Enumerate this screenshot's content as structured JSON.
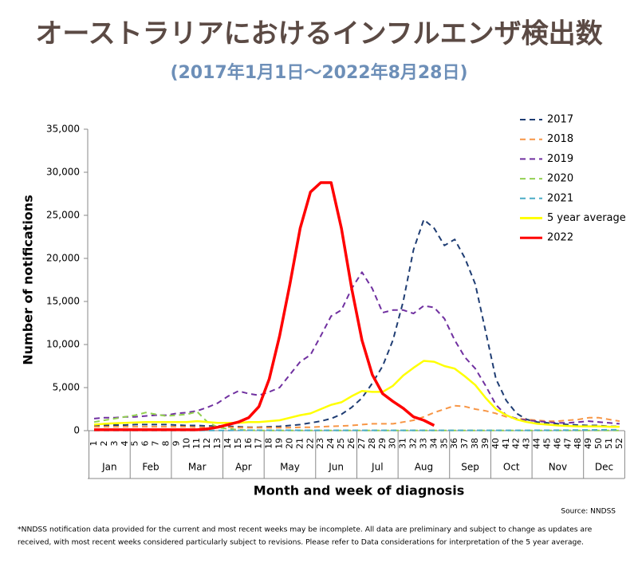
{
  "header": {
    "title": "オーストラリアにおけるインフルエンザ検出数",
    "subtitle": "(2017年1月1日～2022年8月28日)"
  },
  "chart_data": {
    "type": "line",
    "y_label": "Number of notifications",
    "x_label": "Month and week of diagnosis",
    "source": "Source: NNDSS",
    "footnote": [
      "*NNDSS notification data provided for the current and most recent weeks may be incomplete. All data are preliminary and subject to change as updates are",
      "received, with most recent weeks considered particularly subject to revisions. Please refer to Data considerations for interpretation of the 5 year average."
    ],
    "categories": [
      1,
      2,
      3,
      4,
      5,
      6,
      7,
      8,
      9,
      10,
      11,
      12,
      13,
      14,
      15,
      16,
      17,
      18,
      19,
      20,
      21,
      22,
      23,
      24,
      25,
      26,
      27,
      28,
      29,
      30,
      31,
      32,
      33,
      34,
      35,
      36,
      37,
      38,
      39,
      40,
      41,
      42,
      43,
      44,
      45,
      46,
      47,
      48,
      49,
      50,
      51,
      52
    ],
    "month_groups": [
      {
        "label": "Jan",
        "first_week": 1,
        "last_week": 4
      },
      {
        "label": "Feb",
        "first_week": 5,
        "last_week": 8
      },
      {
        "label": "Mar",
        "first_week": 9,
        "last_week": 13
      },
      {
        "label": "Apr",
        "first_week": 14,
        "last_week": 17
      },
      {
        "label": "May",
        "first_week": 18,
        "last_week": 22
      },
      {
        "label": "Jun",
        "first_week": 23,
        "last_week": 26
      },
      {
        "label": "Jul",
        "first_week": 27,
        "last_week": 30
      },
      {
        "label": "Aug",
        "first_week": 31,
        "last_week": 35
      },
      {
        "label": "Sep",
        "first_week": 36,
        "last_week": 39
      },
      {
        "label": "Oct",
        "first_week": 40,
        "last_week": 43
      },
      {
        "label": "Nov",
        "first_week": 44,
        "last_week": 48
      },
      {
        "label": "Dec",
        "first_week": 49,
        "last_week": 52
      }
    ],
    "ylim": [
      0,
      35000
    ],
    "yticks": [
      0,
      {
        "value": 5000,
        "label": "5,000"
      },
      {
        "value": 10000,
        "label": "10,000"
      },
      {
        "value": 15000,
        "label": "15,000"
      },
      {
        "value": 20000,
        "label": "20,000"
      },
      {
        "value": 25000,
        "label": "25,000"
      },
      {
        "value": 30000,
        "label": "30,000"
      },
      {
        "value": 35000,
        "label": "35,000"
      }
    ],
    "grid": false,
    "legend": "top-right",
    "series": [
      {
        "name": "2017",
        "color": "#1f3d73",
        "line_style": "dashed",
        "values": [
          600,
          600,
          650,
          650,
          700,
          700,
          700,
          700,
          650,
          600,
          600,
          550,
          550,
          500,
          450,
          400,
          400,
          450,
          500,
          600,
          700,
          900,
          1100,
          1400,
          1900,
          2700,
          3800,
          5500,
          7500,
          10500,
          15000,
          21000,
          24500,
          23500,
          21500,
          22200,
          20000,
          17000,
          11500,
          6000,
          3500,
          2000,
          1300,
          1000,
          900,
          800,
          700,
          650,
          600,
          600,
          500,
          500
        ]
      },
      {
        "name": "2018",
        "color": "#f79646",
        "line_style": "dashed",
        "values": [
          450,
          450,
          450,
          450,
          450,
          450,
          450,
          450,
          450,
          450,
          400,
          400,
          400,
          400,
          350,
          350,
          350,
          350,
          350,
          350,
          400,
          400,
          450,
          500,
          550,
          600,
          700,
          800,
          800,
          800,
          1000,
          1200,
          1600,
          2100,
          2500,
          2900,
          2800,
          2500,
          2300,
          2000,
          1600,
          1400,
          1300,
          1200,
          1100,
          1100,
          1200,
          1300,
          1500,
          1500,
          1300,
          1100
        ]
      },
      {
        "name": "2019",
        "color": "#7030a0",
        "line_style": "dashed",
        "values": [
          1400,
          1500,
          1500,
          1600,
          1600,
          1700,
          1800,
          1800,
          2000,
          2100,
          2300,
          2700,
          3200,
          4000,
          4600,
          4300,
          4100,
          4500,
          5000,
          6500,
          8000,
          8800,
          11000,
          13300,
          14000,
          16500,
          18400,
          16500,
          13700,
          14000,
          14000,
          13600,
          14500,
          14300,
          13000,
          10500,
          8500,
          7200,
          5200,
          3000,
          1800,
          1400,
          1200,
          1100,
          1000,
          900,
          900,
          1000,
          1100,
          1000,
          900,
          800
        ]
      },
      {
        "name": "2020",
        "color": "#92d050",
        "line_style": "dashed",
        "values": [
          1000,
          1200,
          1400,
          1600,
          1800,
          2100,
          1900,
          1700,
          1800,
          1900,
          2200,
          1000,
          400,
          200,
          100,
          50,
          30,
          30,
          30,
          30,
          30,
          30,
          30,
          30,
          30,
          30,
          30,
          30,
          30,
          30,
          30,
          30,
          30,
          30,
          30,
          30,
          30,
          30,
          30,
          30,
          30,
          30,
          30,
          30,
          30,
          30,
          30,
          30,
          30,
          30,
          30,
          30
        ]
      },
      {
        "name": "2021",
        "color": "#4bacc6",
        "line_style": "dashed",
        "values": [
          30,
          30,
          30,
          30,
          30,
          30,
          30,
          30,
          30,
          30,
          30,
          30,
          30,
          30,
          40,
          50,
          50,
          50,
          50,
          50,
          40,
          40,
          40,
          40,
          40,
          40,
          40,
          40,
          40,
          40,
          40,
          40,
          40,
          40,
          40,
          40,
          40,
          40,
          40,
          40,
          40,
          40,
          40,
          50,
          50,
          60,
          60,
          70,
          80,
          90,
          100,
          100
        ]
      },
      {
        "name": "5 year average",
        "color": "#ffff00",
        "line_style": "solid",
        "values": [
          700,
          800,
          850,
          900,
          950,
          1000,
          1000,
          1000,
          1000,
          1000,
          1100,
          1000,
          900,
          900,
          900,
          1000,
          1000,
          1100,
          1200,
          1500,
          1800,
          2000,
          2500,
          3000,
          3300,
          4000,
          4600,
          4500,
          4500,
          5200,
          6400,
          7300,
          8100,
          8000,
          7500,
          7200,
          6300,
          5300,
          3800,
          2500,
          1800,
          1300,
          1000,
          800,
          700,
          600,
          550,
          500,
          500,
          500,
          450,
          450
        ]
      },
      {
        "name": "2022",
        "color": "#ff0000",
        "line_style": "solid",
        "values": [
          100,
          100,
          100,
          100,
          100,
          100,
          100,
          100,
          100,
          100,
          100,
          200,
          400,
          700,
          1000,
          1500,
          2800,
          6000,
          11000,
          17000,
          23500,
          27700,
          28800,
          28800,
          23500,
          16500,
          10500,
          6500,
          4300,
          3400,
          2600,
          1600,
          1200,
          600,
          null,
          null,
          null,
          null,
          null,
          null,
          null,
          null,
          null,
          null,
          null,
          null,
          null,
          null,
          null,
          null,
          null,
          null
        ]
      }
    ]
  }
}
